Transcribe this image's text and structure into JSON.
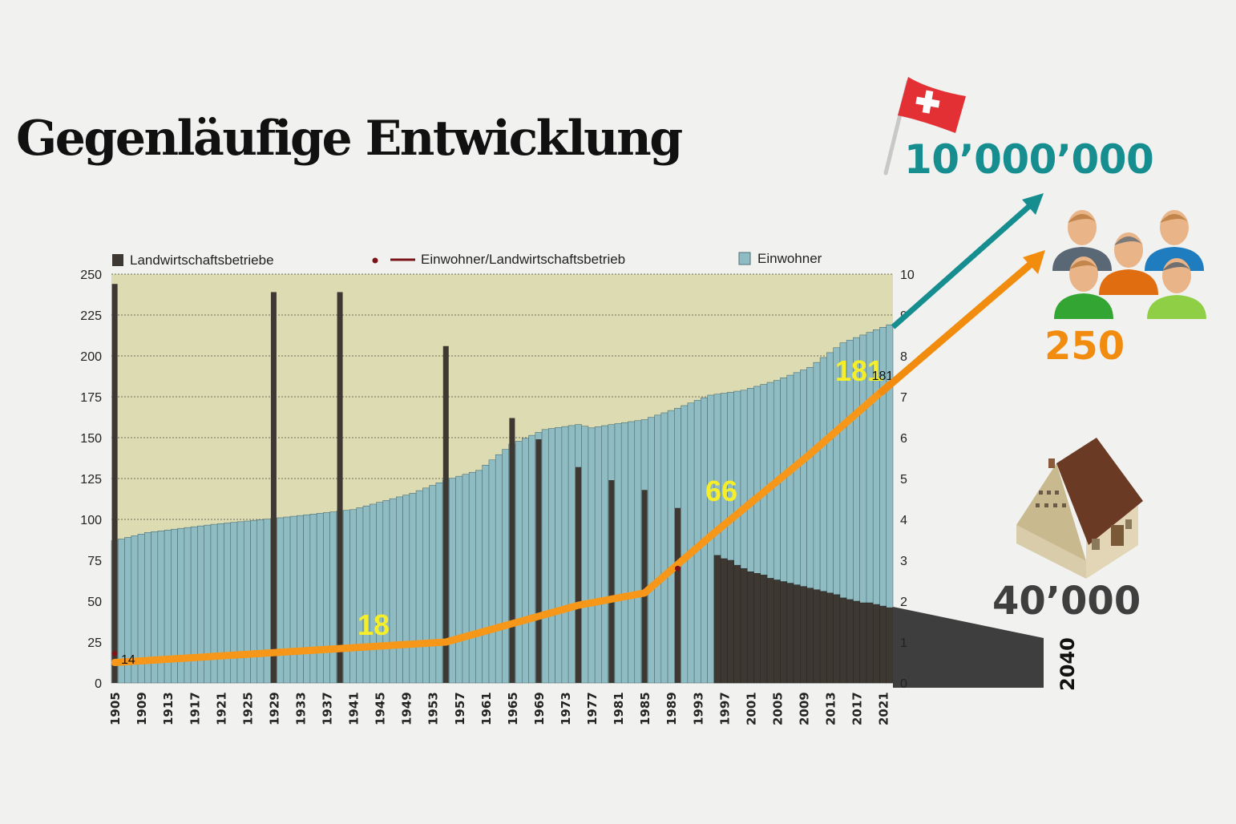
{
  "title": "Gegenläufige Entwicklung",
  "callouts": {
    "population_2040": "10’000’000",
    "inhabitants_per_farm_2040": "250",
    "farms_2040": "40’000",
    "year_2040": "2040"
  },
  "colors": {
    "plot_background": "#dcdbb2",
    "einwohner": "#8fbcc2",
    "landwirtschaftsbetriebe": "#3e3833",
    "einwohner_pro_betrieb_line": "#f6971a",
    "einwohner_pro_betrieb_marker": "#7a1418",
    "population_arrow": "#168d8f",
    "inhabitants_arrow": "#f28c0f",
    "farms_projection": "#3e3e3e",
    "trend_label": "#f5ee28"
  },
  "icons": [
    "swiss-flag-icon",
    "people-group-icon",
    "farmhouse-icon"
  ],
  "chart_data": {
    "type": "bar",
    "legend": [
      "Landwirtschaftsbetriebe",
      "Einwohner/Landwirtschaftsbetrieb",
      "Einwohner"
    ],
    "legend_placement": "top",
    "grid": true,
    "x_tick_labels": [
      "1905",
      "1909",
      "1913",
      "1917",
      "1921",
      "1925",
      "1929",
      "1933",
      "1937",
      "1941",
      "1945",
      "1949",
      "1953",
      "1957",
      "1961",
      "1965",
      "1969",
      "1973",
      "1977",
      "1981",
      "1985",
      "1989",
      "1993",
      "1997",
      "2001",
      "2005",
      "2009",
      "2013",
      "2017",
      "2021"
    ],
    "y_left": {
      "range": [
        0,
        250
      ],
      "ticks": [
        "0",
        "25",
        "50",
        "75",
        "100",
        "125",
        "150",
        "175",
        "200",
        "225",
        "250"
      ]
    },
    "y_right": {
      "range": [
        0,
        10
      ],
      "ticks": [
        "0",
        "1",
        "2",
        "3",
        "4",
        "5",
        "6",
        "7",
        "8",
        "9",
        "10"
      ]
    },
    "series": [
      {
        "name": "Einwohner",
        "axis": "left",
        "x": [
          1905,
          1910,
          1920,
          1930,
          1941,
          1950,
          1955,
          1960,
          1965,
          1970,
          1975,
          1977,
          1980,
          1985,
          1990,
          1995,
          2000,
          2005,
          2010,
          2015,
          2020,
          2022
        ],
        "y": [
          87,
          92,
          97,
          101,
          106,
          116,
          124,
          130,
          146,
          155,
          158,
          156,
          158,
          161,
          168,
          176,
          179,
          185,
          193,
          208,
          216,
          219
        ]
      },
      {
        "name": "Landwirtschaftsbetriebe",
        "axis": "left",
        "x": [
          1905,
          1929,
          1939,
          1955,
          1965,
          1969,
          1975,
          1980,
          1985,
          1990,
          1996,
          1997,
          1998,
          1999,
          2000,
          2001,
          2002,
          2003,
          2004,
          2005,
          2006,
          2007,
          2008,
          2009,
          2010,
          2011,
          2012,
          2013,
          2014,
          2015,
          2016,
          2017,
          2018,
          2019,
          2020,
          2021,
          2022
        ],
        "y": [
          244,
          239,
          239,
          206,
          162,
          149,
          132,
          124,
          118,
          107,
          78,
          76,
          75,
          72,
          70,
          68,
          67,
          66,
          64,
          63,
          62,
          61,
          60,
          59,
          58,
          57,
          56,
          55,
          54,
          52,
          51,
          50,
          49,
          49,
          48,
          47,
          46
        ]
      },
      {
        "name": "Einwohner/Landwirtschaftsbetrieb",
        "axis": "right",
        "x": [
          1905,
          1955,
          1975,
          1985,
          1995,
          2010,
          2022
        ],
        "y": [
          0.5,
          1.0,
          1.9,
          2.2,
          3.6,
          5.6,
          7.3
        ]
      }
    ],
    "point_labels": [
      {
        "text": "14",
        "x": 1905
      },
      {
        "text": "18",
        "x": 1945
      },
      {
        "text": "66",
        "x": 1991
      },
      {
        "text": "181",
        "x": 2017
      },
      {
        "text": "181",
        "x": 2020
      }
    ]
  }
}
